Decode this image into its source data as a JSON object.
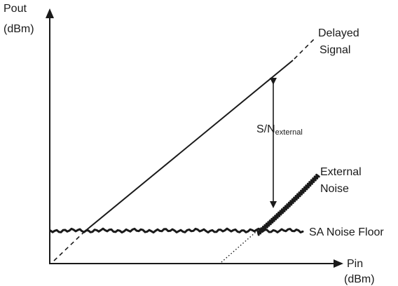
{
  "y_axis": {
    "label_line1": "Pout",
    "label_line2": "(dBm)"
  },
  "x_axis": {
    "label_line1": "Pin",
    "label_line2": "(dBm)"
  },
  "delayed_signal": {
    "label_line1": "Delayed",
    "label_line2": "Signal"
  },
  "external_noise": {
    "label_line1": "External",
    "label_line2": "Noise"
  },
  "sa_noise_floor": {
    "label": "SA Noise Floor"
  },
  "snr": {
    "label_main": "S/N",
    "label_sub": "external"
  },
  "colors": {
    "ink": "#1a1a1a"
  }
}
